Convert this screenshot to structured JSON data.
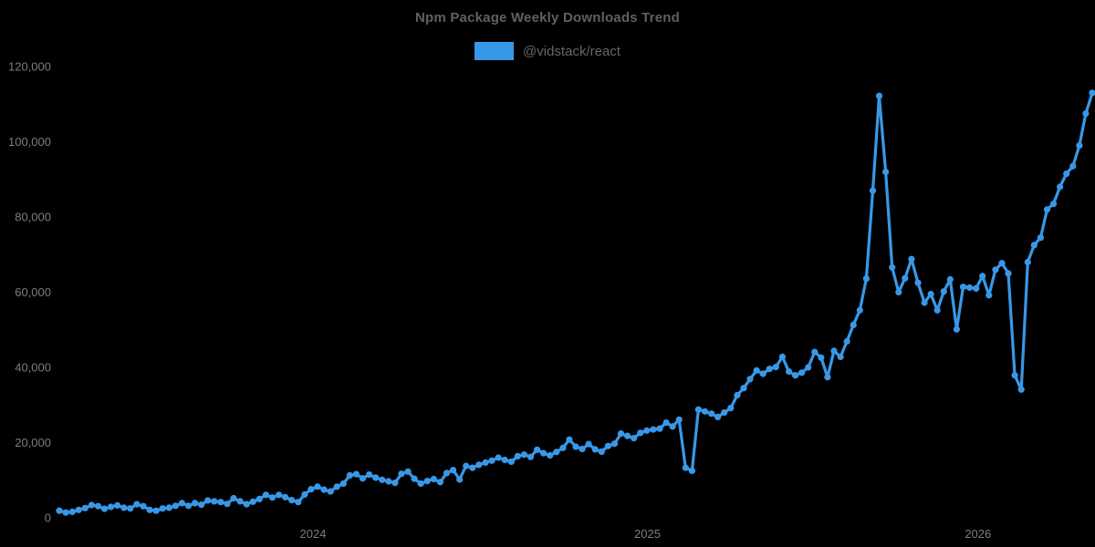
{
  "chart": {
    "title": "Npm Package Weekly Downloads Trend"
  },
  "colors": {
    "background": "#000000",
    "line": "#3898e8",
    "title_text": "#606060",
    "legend_text": "#666666",
    "tick_text": "#7d7d7d"
  },
  "chart_data": {
    "type": "line",
    "title": "Npm Package Weekly Downloads Trend",
    "x_unit": "week",
    "ylim": [
      0,
      120000
    ],
    "grid": false,
    "legend_position": "top",
    "marker": "circle",
    "yticks": [
      {
        "value": 0,
        "label": "0"
      },
      {
        "value": 20000,
        "label": "20,000"
      },
      {
        "value": 40000,
        "label": "40,000"
      },
      {
        "value": 60000,
        "label": "60,000"
      },
      {
        "value": 80000,
        "label": "80,000"
      },
      {
        "value": 100000,
        "label": "100,000"
      },
      {
        "value": 120000,
        "label": "120,000"
      }
    ],
    "x_labels": [
      {
        "label": "2024",
        "week_index": 39.3
      },
      {
        "label": "2025",
        "week_index": 91.1
      },
      {
        "label": "2026",
        "week_index": 142.3
      }
    ],
    "series": [
      {
        "name": "@vidstack/react",
        "color": "#3898e8",
        "values": [
          1900,
          1400,
          1600,
          2100,
          2600,
          3400,
          3100,
          2400,
          2900,
          3300,
          2700,
          2500,
          3600,
          3100,
          2100,
          1900,
          2500,
          2700,
          3200,
          3900,
          3200,
          3900,
          3500,
          4600,
          4400,
          4200,
          3700,
          5200,
          4400,
          3600,
          4300,
          5000,
          6100,
          5400,
          6100,
          5500,
          4700,
          4200,
          6200,
          7600,
          8300,
          7500,
          7000,
          8300,
          9100,
          11300,
          11600,
          10500,
          11500,
          10700,
          10100,
          9700,
          9300,
          11700,
          12300,
          10400,
          9100,
          9800,
          10300,
          9500,
          11900,
          12700,
          10200,
          13800,
          13300,
          14100,
          14700,
          15200,
          16000,
          15400,
          14900,
          16400,
          16800,
          16200,
          18100,
          17200,
          16600,
          17500,
          18600,
          20800,
          18900,
          18300,
          19600,
          18200,
          17600,
          19100,
          19700,
          22400,
          21800,
          21200,
          22600,
          23200,
          23500,
          23700,
          25300,
          24300,
          26100,
          13300,
          12500,
          28800,
          28300,
          27700,
          26800,
          28000,
          29200,
          32600,
          34500,
          36900,
          39200,
          38300,
          39600,
          40100,
          42800,
          38900,
          37900,
          38600,
          40000,
          44100,
          42600,
          37400,
          44400,
          42800,
          46900,
          51300,
          55200,
          63600,
          87000,
          112200,
          92000,
          66600,
          60000,
          63700,
          68800,
          62500,
          57200,
          59500,
          55200,
          60200,
          63400,
          50100,
          61400,
          61200,
          61000,
          64300,
          59200,
          66000,
          67700,
          65000,
          37900,
          34100,
          68000,
          72500,
          74500,
          82000,
          83500,
          88000,
          91500,
          93500,
          99000,
          107500,
          113000
        ]
      }
    ]
  }
}
